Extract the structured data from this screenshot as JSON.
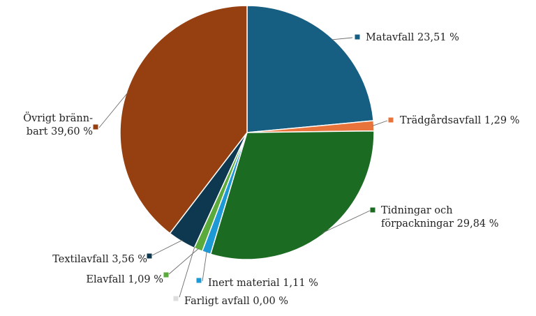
{
  "chart_data": {
    "type": "pie",
    "title": "",
    "slices": [
      {
        "label": "Matavfall",
        "value": 23.51,
        "display": "23,51 %",
        "color": "#175f82"
      },
      {
        "label": "Trädgårdsavfall",
        "value": 1.29,
        "display": "1,29 %",
        "color": "#e8743b"
      },
      {
        "label": "Tidningar och förpackningar",
        "value": 29.84,
        "display": "29,84 %",
        "color": "#1b6b22"
      },
      {
        "label": "Inert material",
        "value": 1.11,
        "display": "1,11 %",
        "color": "#1d9ad6"
      },
      {
        "label": "Elavfall",
        "value": 1.09,
        "display": "1,09 %",
        "color": "#5aab3c"
      },
      {
        "label": "Farligt avfall",
        "value": 0.0,
        "display": "0,00 %",
        "color": "#dddddd"
      },
      {
        "label": "Textilavfall",
        "value": 3.56,
        "display": "3,56 %",
        "color": "#0d3850"
      },
      {
        "label": "Övrigt brännbart",
        "value": 39.6,
        "display": "39,60 %",
        "color": "#963f11"
      }
    ],
    "label_lines": [
      [
        "Matavfall 23,51 %"
      ],
      [
        "Trädgårdsavfall 1,29 %"
      ],
      [
        "Tidningar och",
        "förpackningar 29,84 %"
      ],
      [
        "Inert material 1,11 %"
      ],
      [
        "Elavfall 1,09 %"
      ],
      [
        "Farligt avfall 0,00 %"
      ],
      [
        "Textilavfall 3,56 %"
      ],
      [
        "Övrigt bränn-",
        "bart 39,60 %"
      ]
    ]
  }
}
